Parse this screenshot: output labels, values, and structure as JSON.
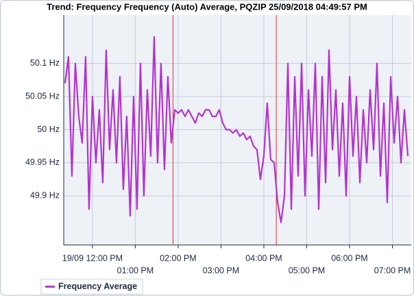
{
  "chart_data": {
    "type": "line",
    "title": "Trend: Frequency Frequency (Auto) Average, PQZIP 25/09/2018 04:49:57 PM",
    "x": [
      11.36,
      11.44,
      11.52,
      11.6,
      11.68,
      11.76,
      11.84,
      11.92,
      12.0,
      12.08,
      12.16,
      12.24,
      12.32,
      12.4,
      12.48,
      12.56,
      12.64,
      12.72,
      12.8,
      12.88,
      12.96,
      13.04,
      13.12,
      13.2,
      13.28,
      13.36,
      13.44,
      13.52,
      13.6,
      13.68,
      13.76,
      13.84,
      13.92,
      14.0,
      14.08,
      14.16,
      14.24,
      14.32,
      14.4,
      14.48,
      14.56,
      14.64,
      14.72,
      14.8,
      14.88,
      14.96,
      15.04,
      15.12,
      15.2,
      15.28,
      15.36,
      15.44,
      15.52,
      15.6,
      15.68,
      15.76,
      15.84,
      15.92,
      16.0,
      16.08,
      16.16,
      16.24,
      16.32,
      16.4,
      16.48,
      16.56,
      16.64,
      16.72,
      16.8,
      16.88,
      16.96,
      17.04,
      17.12,
      17.2,
      17.28,
      17.36,
      17.44,
      17.52,
      17.6,
      17.68,
      17.76,
      17.84,
      17.92,
      18.0,
      18.08,
      18.16,
      18.24,
      18.32,
      18.4,
      18.48,
      18.56,
      18.64,
      18.72,
      18.8,
      18.88,
      18.96,
      19.04,
      19.12,
      19.2,
      19.28,
      19.36
    ],
    "series": [
      {
        "name": "Frequency Average",
        "color": "#b233d0",
        "values": [
          50.07,
          50.11,
          49.93,
          50.1,
          50.02,
          49.98,
          50.11,
          49.88,
          50.05,
          49.95,
          50.03,
          49.92,
          50.12,
          49.97,
          50.06,
          49.95,
          50.08,
          49.91,
          50.02,
          49.87,
          50.05,
          49.88,
          50.1,
          49.9,
          50.06,
          49.96,
          50.14,
          49.95,
          50.1,
          49.94,
          50.08,
          49.98,
          50.03,
          50.025,
          50.03,
          50.02,
          50.03,
          50.02,
          50.01,
          50.025,
          50.02,
          50.03,
          50.03,
          50.02,
          50.02,
          50.03,
          50.01,
          50.0,
          50.0,
          49.995,
          50.0,
          49.99,
          49.995,
          49.985,
          49.99,
          49.975,
          49.97,
          49.925,
          49.96,
          50.04,
          49.955,
          49.95,
          49.89,
          49.86,
          49.9,
          50.1,
          49.88,
          50.08,
          49.93,
          50.1,
          49.9,
          50.06,
          49.96,
          50.1,
          49.88,
          50.08,
          49.92,
          50.12,
          49.97,
          50.06,
          49.93,
          50.04,
          49.9,
          50.08,
          49.96,
          50.05,
          49.92,
          50.03,
          49.95,
          50.06,
          49.97,
          50.1,
          49.93,
          50.04,
          49.89,
          50.08,
          49.98,
          50.05,
          49.95,
          50.03,
          49.96
        ]
      }
    ],
    "xlim": [
      11.33,
      19.44
    ],
    "xticks": [
      {
        "value": 12,
        "label": "19/09 12:00 PM"
      },
      {
        "value": 13,
        "label": "01:00 PM"
      },
      {
        "value": 14,
        "label": "02:00 PM"
      },
      {
        "value": 15,
        "label": "03:00 PM"
      },
      {
        "value": 16,
        "label": "04:00 PM"
      },
      {
        "value": 17,
        "label": "05:00 PM"
      },
      {
        "value": 18,
        "label": "06:00 PM"
      },
      {
        "value": 19,
        "label": "07:00 PM"
      }
    ],
    "ylim": [
      49.826,
      50.173
    ],
    "yticks": [
      {
        "value": 49.9,
        "label": "49.9 Hz"
      },
      {
        "value": 49.95,
        "label": "49.95 Hz"
      },
      {
        "value": 50,
        "label": "50 Hz"
      },
      {
        "value": 50.05,
        "label": "50.05 Hz"
      },
      {
        "value": 50.1,
        "label": "50.1 Hz"
      }
    ],
    "markers": [
      13.88,
      16.29
    ],
    "marker_color": "#e03030",
    "grid": true,
    "legend": "bottom-left"
  }
}
